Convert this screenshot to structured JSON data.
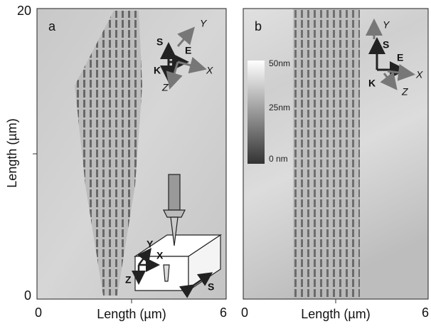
{
  "figure": {
    "y_axis": {
      "label": "Length (µm)",
      "ticks": [
        0,
        20
      ]
    },
    "panels": [
      {
        "label": "a",
        "x_axis": {
          "label": "Length (µm)",
          "ticks": [
            0,
            6
          ]
        },
        "triad": {
          "s": "S",
          "y": "Y",
          "e": "E",
          "x": "X",
          "k": "K",
          "z": "Z"
        },
        "inset": {
          "y": "Y",
          "x": "X",
          "z": "Z",
          "s": "S"
        }
      },
      {
        "label": "b",
        "x_axis": {
          "label": "Length (µm)",
          "ticks": [
            0,
            6
          ]
        },
        "triad": {
          "s": "S",
          "y": "Y",
          "e": "E",
          "x": "X",
          "k": "K",
          "z": "Z"
        },
        "colorbar": {
          "top": "50nm",
          "middle": "25nm",
          "bottom": "0 nm"
        }
      }
    ]
  }
}
